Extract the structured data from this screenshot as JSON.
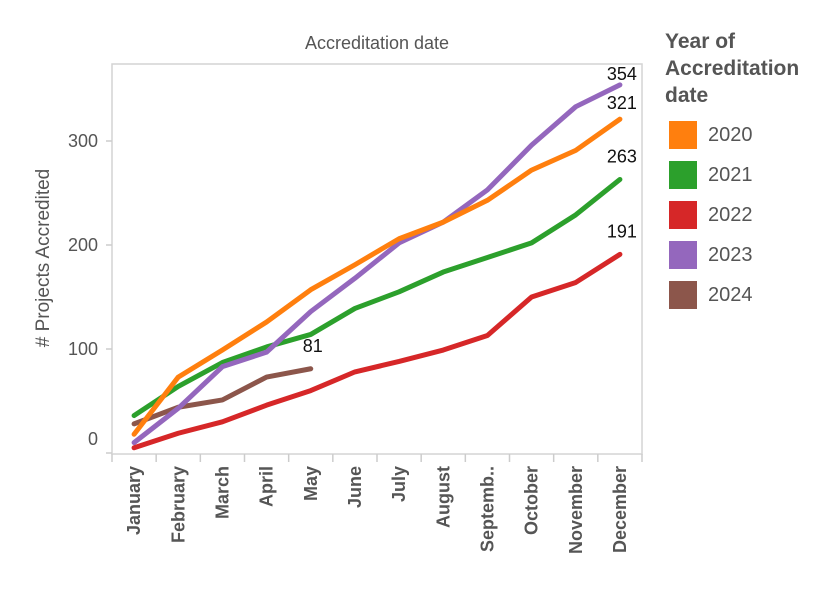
{
  "chart_data": {
    "type": "line",
    "title": "Accreditation date",
    "xlabel": "",
    "ylabel": "# Projects Accredited",
    "categories": [
      "January",
      "February",
      "March",
      "April",
      "May",
      "June",
      "July",
      "August",
      "Septemb..",
      "October",
      "November",
      "December"
    ],
    "yticks": [
      0,
      100,
      200,
      300
    ],
    "ylim": [
      -10,
      372
    ],
    "grid": false,
    "legend": {
      "title": "Year of Accreditation date",
      "position": "right"
    },
    "series": [
      {
        "name": "2020",
        "color": "#ff7f0e",
        "values": [
          18,
          73,
          99,
          126,
          157,
          181,
          206,
          222,
          243,
          272,
          291,
          321
        ],
        "end_label": "321"
      },
      {
        "name": "2021",
        "color": "#2ca02c",
        "values": [
          36,
          64,
          87,
          102,
          114,
          139,
          155,
          174,
          188,
          202,
          229,
          263
        ],
        "end_label": "263"
      },
      {
        "name": "2022",
        "color": "#d62728",
        "values": [
          5,
          19,
          30,
          46,
          60,
          78,
          88,
          99,
          113,
          150,
          164,
          191
        ],
        "end_label": "191"
      },
      {
        "name": "2023",
        "color": "#9467bd",
        "values": [
          10,
          43,
          83,
          97,
          136,
          168,
          202,
          222,
          253,
          296,
          333,
          354
        ],
        "end_label": "354"
      },
      {
        "name": "2024",
        "color": "#8c564b",
        "values": [
          28,
          44,
          51,
          73,
          81
        ],
        "end_label": "81"
      }
    ]
  }
}
